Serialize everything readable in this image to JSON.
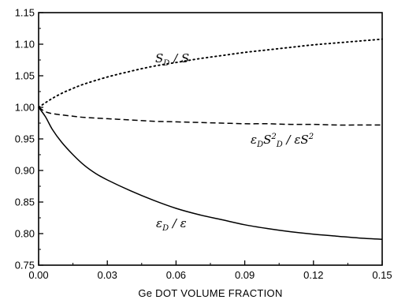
{
  "chart_data": {
    "type": "line",
    "title": "",
    "xlabel": "Ge DOT VOLUME FRACTION",
    "ylabel": "",
    "xlim": [
      0.0,
      0.15
    ],
    "ylim": [
      0.75,
      1.15
    ],
    "grid": false,
    "x_ticks": [
      0.0,
      0.03,
      0.06,
      0.09,
      0.12,
      0.15
    ],
    "x_tick_labels": [
      "0.00",
      "0.03",
      "0.06",
      "0.09",
      "0.12",
      "0.15"
    ],
    "y_ticks": [
      0.75,
      0.8,
      0.85,
      0.9,
      0.95,
      1.0,
      1.05,
      1.1,
      1.15
    ],
    "y_tick_labels": [
      "0.75",
      "0.80",
      "0.85",
      "0.90",
      "0.95",
      "1.00",
      "1.05",
      "1.10",
      "1.15"
    ],
    "series": [
      {
        "label_parts": [
          [
            "S",
            ""
          ],
          [
            "D",
            "sub"
          ],
          [
            " / S",
            ""
          ]
        ],
        "style": "dotted",
        "color": "#000000",
        "x": [
          0.0,
          0.005,
          0.01,
          0.015,
          0.02,
          0.03,
          0.04,
          0.05,
          0.06,
          0.07,
          0.08,
          0.09,
          0.1,
          0.11,
          0.12,
          0.13,
          0.14,
          0.15
        ],
        "y": [
          1.0,
          1.012,
          1.022,
          1.03,
          1.037,
          1.048,
          1.057,
          1.065,
          1.071,
          1.077,
          1.082,
          1.087,
          1.091,
          1.095,
          1.099,
          1.102,
          1.105,
          1.108
        ]
      },
      {
        "label_parts": [
          [
            "ε",
            ""
          ],
          [
            "D",
            "sub"
          ],
          [
            "S",
            ""
          ],
          [
            "2",
            "sup"
          ],
          [
            "D",
            "sub"
          ],
          [
            " / εS",
            ""
          ],
          [
            "2",
            "sup"
          ]
        ],
        "style": "dashed",
        "color": "#000000",
        "x": [
          0.0,
          0.003,
          0.006,
          0.01,
          0.015,
          0.02,
          0.03,
          0.04,
          0.05,
          0.06,
          0.07,
          0.08,
          0.09,
          0.1,
          0.11,
          0.12,
          0.13,
          0.14,
          0.15
        ],
        "y": [
          1.0,
          0.993,
          0.99,
          0.988,
          0.986,
          0.984,
          0.982,
          0.98,
          0.978,
          0.977,
          0.976,
          0.975,
          0.974,
          0.974,
          0.973,
          0.973,
          0.972,
          0.972,
          0.972
        ]
      },
      {
        "label_parts": [
          [
            "ε",
            ""
          ],
          [
            "D",
            "sub"
          ],
          [
            " / ε",
            ""
          ]
        ],
        "style": "solid",
        "color": "#000000",
        "x": [
          0.0,
          0.003,
          0.006,
          0.01,
          0.015,
          0.02,
          0.025,
          0.03,
          0.04,
          0.05,
          0.06,
          0.07,
          0.08,
          0.09,
          0.1,
          0.11,
          0.12,
          0.13,
          0.14,
          0.15
        ],
        "y": [
          1.0,
          0.985,
          0.965,
          0.945,
          0.925,
          0.908,
          0.895,
          0.885,
          0.868,
          0.853,
          0.84,
          0.83,
          0.822,
          0.814,
          0.808,
          0.803,
          0.799,
          0.796,
          0.793,
          0.791
        ]
      }
    ]
  }
}
